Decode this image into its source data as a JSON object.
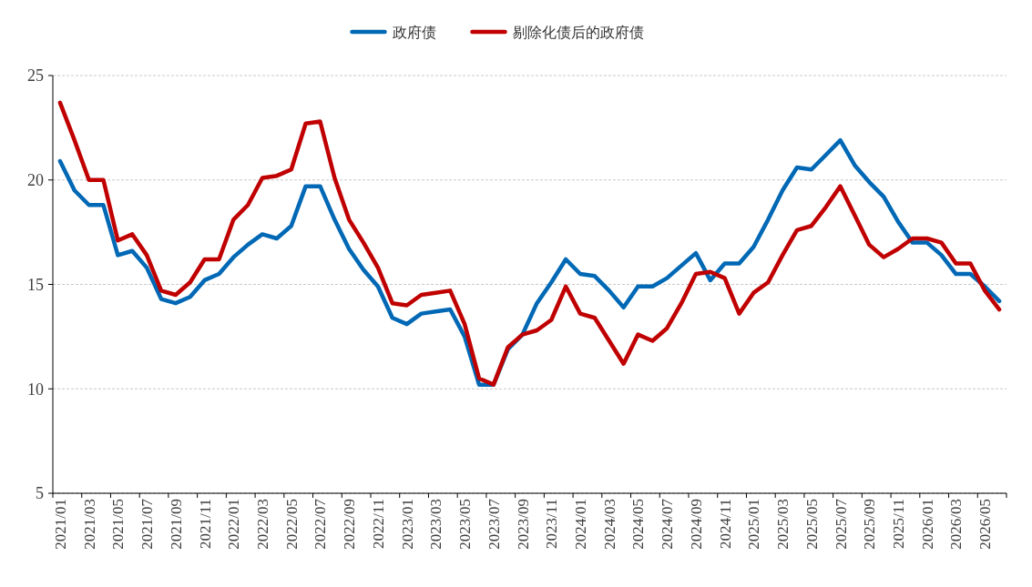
{
  "chart_data": {
    "type": "line",
    "categories": [
      "2021/01",
      null,
      "2021/03",
      null,
      "2021/05",
      null,
      "2021/07",
      null,
      "2021/09",
      null,
      "2021/11",
      null,
      "2022/01",
      null,
      "2022/03",
      null,
      "2022/05",
      null,
      "2022/07",
      null,
      "2022/09",
      null,
      "2022/11",
      null,
      "2023/01",
      null,
      "2023/03",
      null,
      "2023/05",
      null,
      "2023/07",
      null,
      "2023/09",
      null,
      "2023/11",
      null,
      "2024/01",
      null,
      "2024/03",
      null,
      "2024/05",
      null,
      "2024/07",
      null,
      "2024/09",
      null,
      "2024/11",
      null,
      "2025/01",
      null,
      "2025/03",
      null,
      "2025/05",
      null,
      "2025/07",
      null,
      "2025/09",
      null,
      "2025/11",
      null,
      "2026/01",
      null,
      "2026/03",
      null,
      "2026/05",
      null
    ],
    "series": [
      {
        "name": "政府债",
        "color": "#0068b5",
        "values": [
          20.9,
          19.5,
          18.8,
          18.8,
          16.4,
          16.6,
          15.8,
          14.3,
          14.1,
          14.4,
          15.2,
          15.5,
          16.3,
          16.9,
          17.4,
          17.2,
          17.8,
          19.7,
          19.7,
          18.1,
          16.7,
          15.7,
          14.9,
          13.4,
          13.1,
          13.6,
          13.7,
          13.8,
          12.5,
          10.2,
          10.2,
          11.9,
          12.6,
          14.1,
          15.1,
          16.2,
          15.5,
          15.4,
          14.7,
          13.9,
          14.9,
          14.9,
          15.3,
          15.9,
          16.5,
          15.2,
          16.0,
          16.0,
          16.8,
          18.1,
          19.5,
          20.6,
          20.5,
          21.2,
          21.9,
          20.7,
          19.9,
          19.2,
          18.0,
          17.0,
          17.0,
          16.4,
          15.5,
          15.5,
          14.9,
          14.2
        ]
      },
      {
        "name": "剔除化债后的政府债",
        "color": "#c00000",
        "values": [
          23.7,
          21.9,
          20.0,
          20.0,
          17.1,
          17.4,
          16.4,
          14.7,
          14.5,
          15.1,
          16.2,
          16.2,
          18.1,
          18.8,
          20.1,
          20.2,
          20.5,
          22.7,
          22.8,
          20.1,
          18.1,
          17.0,
          15.8,
          14.1,
          14.0,
          14.5,
          14.6,
          14.7,
          13.1,
          10.5,
          10.2,
          12.0,
          12.6,
          12.8,
          13.3,
          14.9,
          13.6,
          13.4,
          12.3,
          11.2,
          12.6,
          12.3,
          12.9,
          14.1,
          15.5,
          15.6,
          15.3,
          13.6,
          14.6,
          15.1,
          16.4,
          17.6,
          17.8,
          18.7,
          19.7,
          18.3,
          16.9,
          16.3,
          16.7,
          17.2,
          17.2,
          17.0,
          16.0,
          16.0,
          14.7,
          13.8
        ]
      }
    ],
    "ylim": [
      5,
      25
    ],
    "yticks": [
      5,
      10,
      15,
      20,
      25
    ],
    "grid": "y",
    "legend": "top",
    "line_style": "solid",
    "marker": "none"
  }
}
